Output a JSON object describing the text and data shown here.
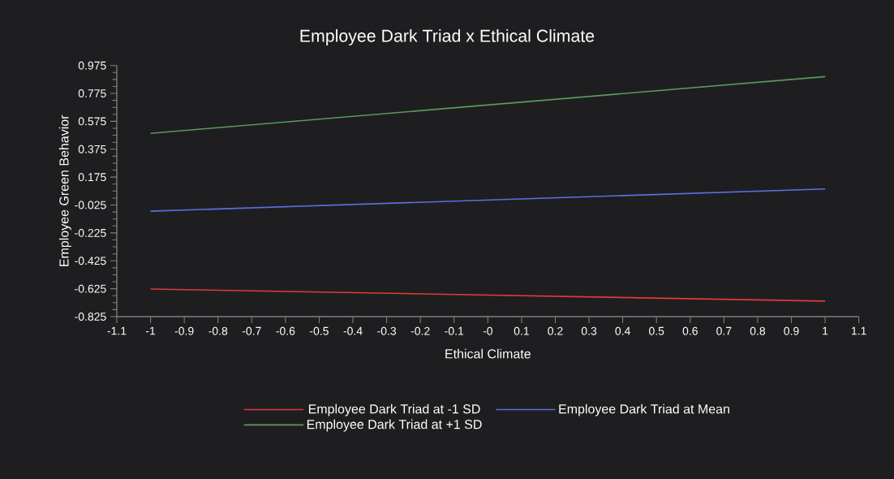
{
  "chart_data": {
    "type": "line",
    "title": "Employee Dark Triad x Ethical Climate",
    "xlabel": "Ethical Climate",
    "ylabel": "Employee Green Behavior",
    "x": [
      -1,
      1
    ],
    "series": [
      {
        "name": "Employee Dark Triad at -1 SD",
        "color": "#e0393e",
        "values": [
          -0.627,
          -0.714
        ]
      },
      {
        "name": "Employee Dark Triad at Mean",
        "color": "#5b6ee1",
        "values": [
          -0.069,
          0.09
        ]
      },
      {
        "name": "Employee Dark Triad at +1 SD",
        "color": "#5a9a5a",
        "values": [
          0.489,
          0.895
        ]
      }
    ],
    "xlim": [
      -1.1,
      1.1
    ],
    "xticks": [
      -1.1,
      -1,
      -0.9,
      -0.8,
      -0.7,
      -0.6,
      -0.5,
      -0.4,
      -0.3,
      -0.2,
      -0.1,
      {
        "value": 0,
        "label": "-0"
      },
      0.1,
      0.2,
      0.3,
      0.4,
      0.5,
      0.6,
      0.7,
      0.8,
      0.9,
      1,
      1.1
    ],
    "ylim": [
      -0.825,
      0.975
    ],
    "yticks": [
      -0.825,
      -0.625,
      -0.425,
      -0.225,
      -0.025,
      0.175,
      0.375,
      0.575,
      0.775,
      0.975
    ],
    "grid": false,
    "legend": "bottom",
    "marker": "none",
    "line_style": "solid"
  }
}
